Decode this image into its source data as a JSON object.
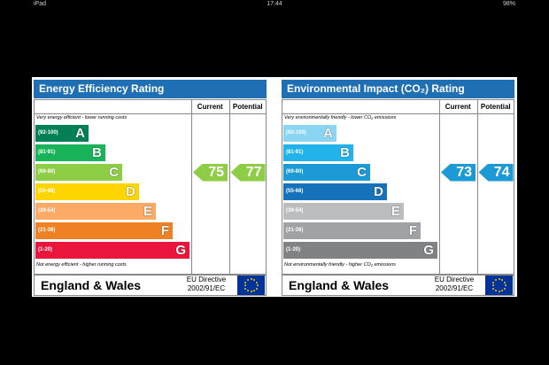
{
  "status_bar": {
    "device": "iPad",
    "time": "17:44",
    "battery": "98%"
  },
  "panels": [
    {
      "title": "Energy Efficiency Rating",
      "columns": [
        "Current",
        "Potential"
      ],
      "top_caption": "Very energy efficient - lower running costs",
      "bands": [
        {
          "range": "(92-100)",
          "letter": "A"
        },
        {
          "range": "(81-91)",
          "letter": "B"
        },
        {
          "range": "(69-80)",
          "letter": "C"
        },
        {
          "range": "(55-68)",
          "letter": "D"
        },
        {
          "range": "(39-54)",
          "letter": "E"
        },
        {
          "range": "(21-38)",
          "letter": "F"
        },
        {
          "range": "(1-20)",
          "letter": "G"
        }
      ],
      "bottom_caption": "Not energy efficient - higher running costs",
      "current": 75,
      "potential": 77,
      "footer": "England & Wales",
      "directive": "EU Directive",
      "directive_code": "2002/91/EC"
    },
    {
      "title": "Environmental Impact (CO₂) Rating",
      "columns": [
        "Current",
        "Potential"
      ],
      "top_caption": "Very environmentally friendly - lower CO₂ emissions",
      "bands": [
        {
          "range": "(92-100)",
          "letter": "A"
        },
        {
          "range": "(81-91)",
          "letter": "B"
        },
        {
          "range": "(69-80)",
          "letter": "C"
        },
        {
          "range": "(55-68)",
          "letter": "D"
        },
        {
          "range": "(39-54)",
          "letter": "E"
        },
        {
          "range": "(21-38)",
          "letter": "F"
        },
        {
          "range": "(1-20)",
          "letter": "G"
        }
      ],
      "bottom_caption": "Not environmentally friendly - higher CO₂ emissions",
      "current": 73,
      "potential": 74,
      "footer": "England & Wales",
      "directive": "EU Directive",
      "directive_code": "2002/91/EC"
    }
  ]
}
